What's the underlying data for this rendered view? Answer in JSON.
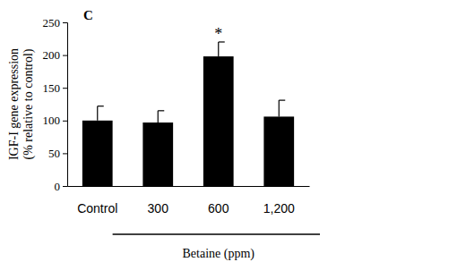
{
  "chart_data": {
    "type": "bar",
    "title": "C",
    "y_label": [
      "IGF-I gene expression",
      "(% relative to control)"
    ],
    "categories": [
      "Control",
      "300",
      "600",
      "1,200"
    ],
    "values": [
      100,
      97,
      198,
      106
    ],
    "errors": [
      22,
      18,
      22,
      25
    ],
    "color": "#000000",
    "ylim": [
      0,
      250
    ],
    "yticks": [
      0,
      50,
      100,
      150,
      200,
      250
    ],
    "annotations": [
      {
        "text": "*",
        "category": "600"
      }
    ],
    "x_group": {
      "label": "Betaine (ppm)",
      "from": "300",
      "to": "1,200"
    }
  }
}
